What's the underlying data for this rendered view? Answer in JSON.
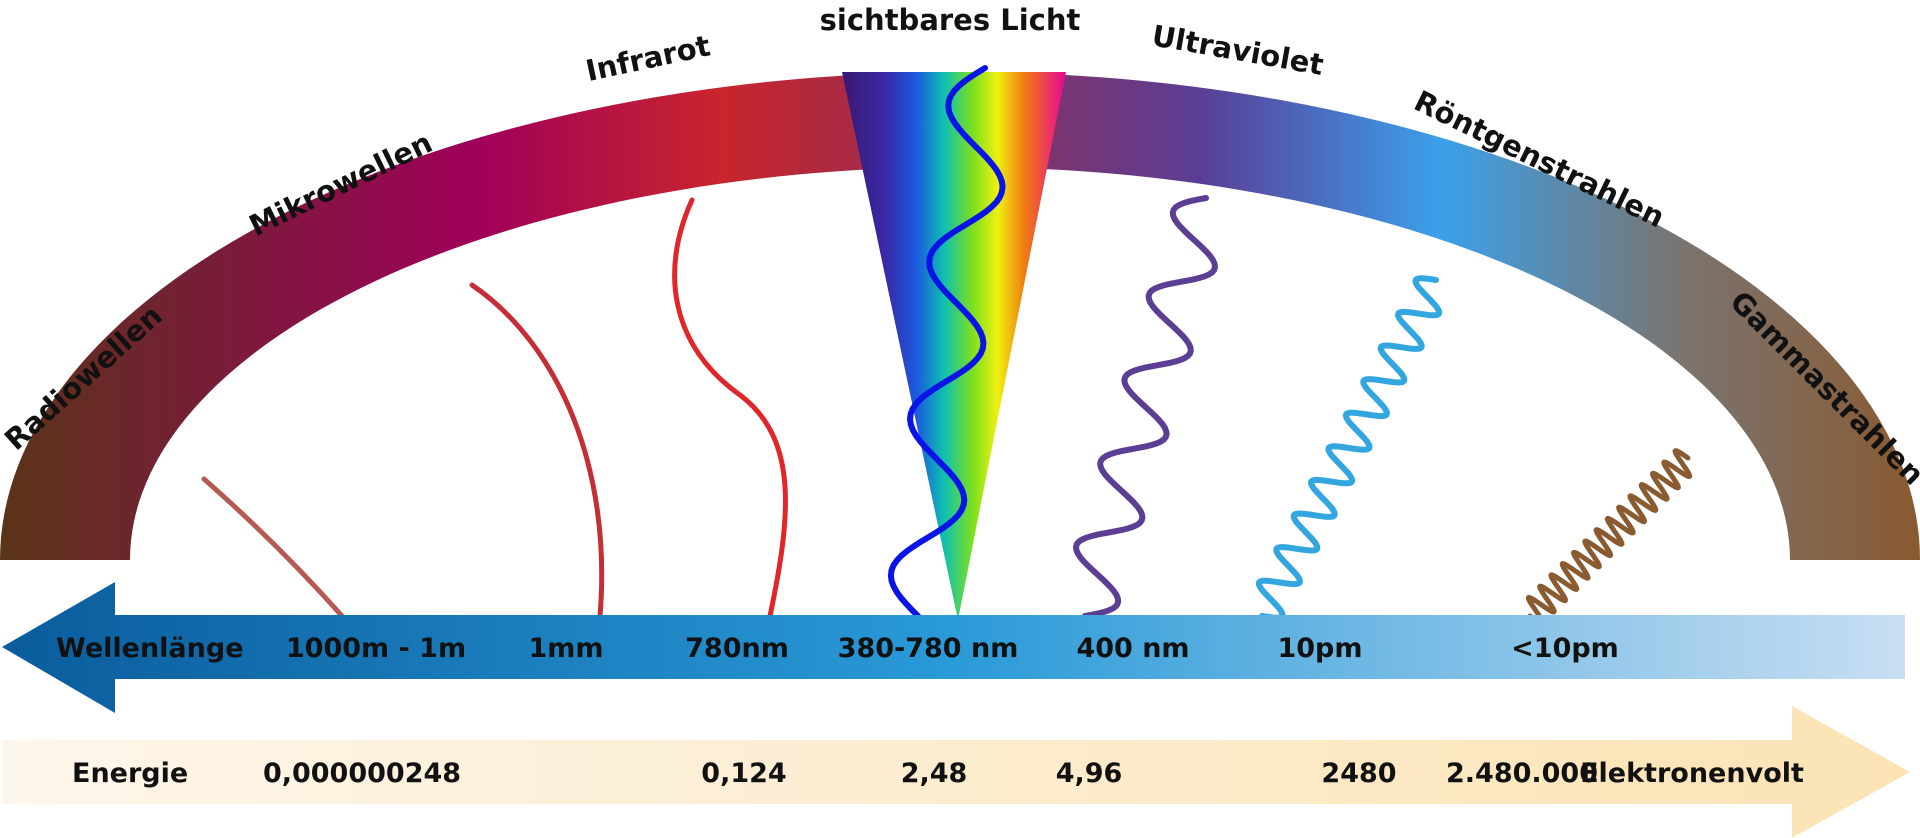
{
  "bands": [
    {
      "label": "Radiowellen"
    },
    {
      "label": "Mikrowellen"
    },
    {
      "label": "Infrarot"
    },
    {
      "label": "sichtbares Licht"
    },
    {
      "label": "Ultraviolet"
    },
    {
      "label": "Röntgenstrahlen"
    },
    {
      "label": "Gammastrahlen"
    }
  ],
  "wavelength_scale": {
    "title": "Wellenlänge",
    "values": [
      "1000m - 1m",
      "1mm",
      "780nm",
      "380-780 nm",
      "400 nm",
      "10pm",
      "<10pm"
    ]
  },
  "energy_scale": {
    "title": "Energie",
    "values": [
      "0,000000248",
      "0,124",
      "2,48",
      "4,96",
      "2480",
      "2.480.000"
    ],
    "unit": "Elektronenvolt"
  },
  "colors": {
    "arc_stops": [
      "#5a3418",
      "#7c1a3c",
      "#a0005a",
      "#c8252c",
      "#8f2f58",
      "#5a3d96",
      "#3ba0ea",
      "#7a7470",
      "#8a5a30"
    ],
    "wave_radio": "#b55a50",
    "wave_micro": "#c52e36",
    "wave_infrared": "#e0262a",
    "wave_visible": "#0a14e6",
    "wave_uv": "#5c3f94",
    "wave_xray": "#33a6e0",
    "wave_gamma": "#8a5a30",
    "wavelength_arrow": [
      "#0a5c9c",
      "#2a9ad8",
      "#c9dff3"
    ],
    "energy_arrow": [
      "#fdf6ea",
      "#fbe3b4"
    ]
  }
}
